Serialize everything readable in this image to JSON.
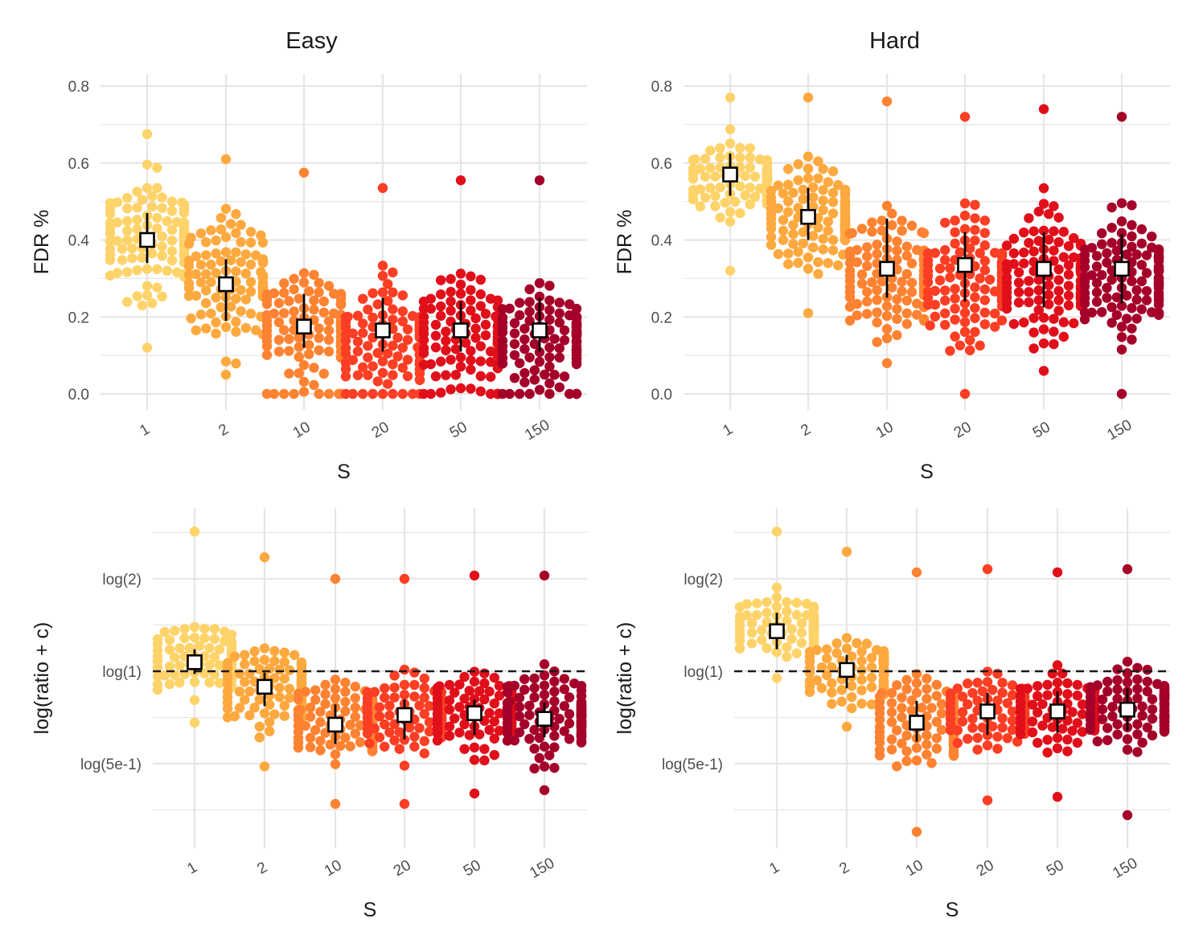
{
  "colors": {
    "S1": "#FED36A",
    "S2": "#FDA93F",
    "S10": "#FD8332",
    "S20": "#FB3E24",
    "S50": "#E00F1A",
    "S150": "#A50029",
    "grid": "#e6e6e6",
    "ref_line": "#1a1a1a"
  },
  "chart_data": [
    {
      "type": "scatter",
      "title": "Easy",
      "xlabel": "S",
      "ylabel": "FDR %",
      "categories": [
        "1",
        "2",
        "10",
        "20",
        "50",
        "150"
      ],
      "y_ticks": [
        "0.0",
        "0.2",
        "0.4",
        "0.6",
        "0.8"
      ],
      "ylim": [
        0,
        0.8
      ],
      "grid": true,
      "legend": "none",
      "summary": [
        {
          "S": "1",
          "median": 0.4,
          "lower": 0.34,
          "upper": 0.47
        },
        {
          "S": "2",
          "median": 0.285,
          "lower": 0.19,
          "upper": 0.35
        },
        {
          "S": "10",
          "median": 0.175,
          "lower": 0.12,
          "upper": 0.26
        },
        {
          "S": "20",
          "median": 0.165,
          "lower": 0.11,
          "upper": 0.25
        },
        {
          "S": "50",
          "median": 0.165,
          "lower": 0.11,
          "upper": 0.24
        },
        {
          "S": "150",
          "median": 0.165,
          "lower": 0.11,
          "upper": 0.25
        }
      ],
      "distribution": [
        {
          "S": "1",
          "n": 110,
          "min": 0.12,
          "max": 0.675,
          "center": 0.4,
          "spread": 0.1
        },
        {
          "S": "2",
          "n": 110,
          "min": 0.05,
          "max": 0.61,
          "center": 0.3,
          "spread": 0.11
        },
        {
          "S": "10",
          "n": 110,
          "min": 0.0,
          "max": 0.575,
          "center": 0.17,
          "spread": 0.1
        },
        {
          "S": "20",
          "n": 110,
          "min": 0.0,
          "max": 0.535,
          "center": 0.15,
          "spread": 0.1
        },
        {
          "S": "50",
          "n": 110,
          "min": 0.0,
          "max": 0.555,
          "center": 0.15,
          "spread": 0.1
        },
        {
          "S": "150",
          "n": 110,
          "min": 0.0,
          "max": 0.555,
          "center": 0.15,
          "spread": 0.1
        }
      ]
    },
    {
      "type": "scatter",
      "title": "Hard",
      "xlabel": "S",
      "ylabel": "FDR %",
      "categories": [
        "1",
        "2",
        "10",
        "20",
        "50",
        "150"
      ],
      "y_ticks": [
        "0.0",
        "0.2",
        "0.4",
        "0.6",
        "0.8"
      ],
      "ylim": [
        0,
        0.8
      ],
      "grid": true,
      "legend": "none",
      "summary": [
        {
          "S": "1",
          "median": 0.57,
          "lower": 0.515,
          "upper": 0.625
        },
        {
          "S": "2",
          "median": 0.46,
          "lower": 0.4,
          "upper": 0.535
        },
        {
          "S": "10",
          "median": 0.325,
          "lower": 0.25,
          "upper": 0.455
        },
        {
          "S": "20",
          "median": 0.335,
          "lower": 0.24,
          "upper": 0.42
        },
        {
          "S": "50",
          "median": 0.325,
          "lower": 0.225,
          "upper": 0.42
        },
        {
          "S": "150",
          "median": 0.325,
          "lower": 0.235,
          "upper": 0.415
        }
      ],
      "distribution": [
        {
          "S": "1",
          "n": 120,
          "min": 0.32,
          "max": 0.77,
          "center": 0.57,
          "spread": 0.07
        },
        {
          "S": "2",
          "n": 120,
          "min": 0.21,
          "max": 0.77,
          "center": 0.46,
          "spread": 0.09
        },
        {
          "S": "10",
          "n": 120,
          "min": 0.08,
          "max": 0.76,
          "center": 0.3,
          "spread": 0.11
        },
        {
          "S": "20",
          "n": 120,
          "min": 0.0,
          "max": 0.72,
          "center": 0.3,
          "spread": 0.11
        },
        {
          "S": "50",
          "n": 120,
          "min": 0.06,
          "max": 0.74,
          "center": 0.3,
          "spread": 0.11
        },
        {
          "S": "150",
          "n": 120,
          "min": 0.0,
          "max": 0.72,
          "center": 0.3,
          "spread": 0.11
        }
      ]
    },
    {
      "type": "scatter",
      "title": "",
      "xlabel": "S",
      "ylabel": "log(ratio + c)",
      "categories": [
        "1",
        "2",
        "10",
        "20",
        "50",
        "150"
      ],
      "y_scale": "log",
      "y_ticks": [
        "log(5e-1)",
        "log(1)",
        "log(2)"
      ],
      "ylim": [
        0.32,
        3.0
      ],
      "reference_line": {
        "y": 1,
        "style": "dashed"
      },
      "grid": true,
      "legend": "none",
      "summary": [
        {
          "S": "1",
          "median": 1.07,
          "lower": 0.98,
          "upper": 1.18
        },
        {
          "S": "2",
          "median": 0.89,
          "lower": 0.77,
          "upper": 0.99
        },
        {
          "S": "10",
          "median": 0.67,
          "lower": 0.58,
          "upper": 0.78
        },
        {
          "S": "20",
          "median": 0.72,
          "lower": 0.6,
          "upper": 0.81
        },
        {
          "S": "50",
          "median": 0.73,
          "lower": 0.62,
          "upper": 0.81
        },
        {
          "S": "150",
          "median": 0.7,
          "lower": 0.61,
          "upper": 0.79
        }
      ],
      "distribution": [
        {
          "S": "1",
          "n": 110,
          "min": 0.68,
          "max": 2.85,
          "center": 1.07,
          "spread": 0.16
        },
        {
          "S": "2",
          "n": 110,
          "min": 0.49,
          "max": 2.35,
          "center": 0.9,
          "spread": 0.2
        },
        {
          "S": "10",
          "n": 130,
          "min": 0.37,
          "max": 2.0,
          "center": 0.68,
          "spread": 0.2
        },
        {
          "S": "20",
          "n": 130,
          "min": 0.37,
          "max": 2.0,
          "center": 0.72,
          "spread": 0.2
        },
        {
          "S": "50",
          "n": 130,
          "min": 0.4,
          "max": 2.05,
          "center": 0.72,
          "spread": 0.2
        },
        {
          "S": "150",
          "n": 130,
          "min": 0.41,
          "max": 2.05,
          "center": 0.7,
          "spread": 0.2
        }
      ]
    },
    {
      "type": "scatter",
      "title": "",
      "xlabel": "S",
      "ylabel": "log(ratio + c)",
      "categories": [
        "1",
        "2",
        "10",
        "20",
        "50",
        "150"
      ],
      "y_scale": "log",
      "y_ticks": [
        "log(5e-1)",
        "log(1)",
        "log(2)"
      ],
      "ylim": [
        0.32,
        3.0
      ],
      "reference_line": {
        "y": 1,
        "style": "dashed"
      },
      "grid": true,
      "legend": "none",
      "summary": [
        {
          "S": "1",
          "median": 1.35,
          "lower": 1.18,
          "upper": 1.55
        },
        {
          "S": "2",
          "median": 1.01,
          "lower": 0.88,
          "upper": 1.13
        },
        {
          "S": "10",
          "median": 0.68,
          "lower": 0.59,
          "upper": 0.8
        },
        {
          "S": "20",
          "median": 0.74,
          "lower": 0.62,
          "upper": 0.85
        },
        {
          "S": "50",
          "median": 0.74,
          "lower": 0.63,
          "upper": 0.86
        },
        {
          "S": "150",
          "median": 0.75,
          "lower": 0.64,
          "upper": 0.88
        }
      ],
      "distribution": [
        {
          "S": "1",
          "n": 120,
          "min": 0.95,
          "max": 2.85,
          "center": 1.4,
          "spread": 0.14
        },
        {
          "S": "2",
          "n": 120,
          "min": 0.66,
          "max": 2.45,
          "center": 1.02,
          "spread": 0.16
        },
        {
          "S": "10",
          "n": 130,
          "min": 0.3,
          "max": 2.1,
          "center": 0.68,
          "spread": 0.2
        },
        {
          "S": "20",
          "n": 130,
          "min": 0.38,
          "max": 2.15,
          "center": 0.74,
          "spread": 0.18
        },
        {
          "S": "50",
          "n": 130,
          "min": 0.39,
          "max": 2.1,
          "center": 0.74,
          "spread": 0.18
        },
        {
          "S": "150",
          "n": 130,
          "min": 0.34,
          "max": 2.15,
          "center": 0.76,
          "spread": 0.18
        }
      ]
    }
  ]
}
